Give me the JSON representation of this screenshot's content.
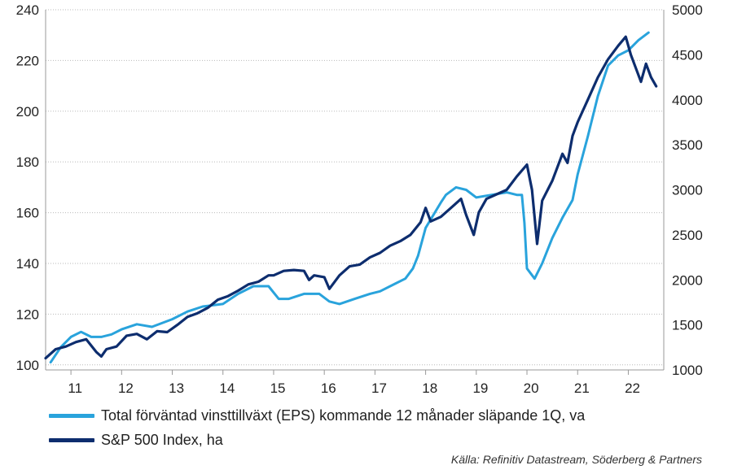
{
  "chart_data": {
    "type": "line",
    "title": "",
    "xlabel": "",
    "ylabel_left": "",
    "ylabel_right": "",
    "x_tick_labels": [
      "11",
      "12",
      "13",
      "14",
      "15",
      "16",
      "17",
      "18",
      "19",
      "20",
      "21",
      "22"
    ],
    "xlim": [
      2010.5,
      2022.7
    ],
    "y_left": {
      "lim": [
        98,
        240
      ],
      "ticks": [
        100,
        120,
        140,
        160,
        180,
        200,
        220,
        240
      ]
    },
    "y_right": {
      "lim": [
        1000,
        5000
      ],
      "ticks": [
        1000,
        1500,
        2000,
        2500,
        3000,
        3500,
        4000,
        4500,
        5000
      ]
    },
    "grid": "horizontal dotted",
    "series": [
      {
        "name": "Total förväntad vinsttillväxt (EPS) kommande 12 månader släpande 1Q, va",
        "axis": "left",
        "color": "#29a3dc",
        "x": [
          2010.6,
          2010.8,
          2011.0,
          2011.2,
          2011.4,
          2011.6,
          2011.8,
          2012.0,
          2012.3,
          2012.6,
          2013.0,
          2013.3,
          2013.6,
          2014.0,
          2014.3,
          2014.6,
          2014.9,
          2015.1,
          2015.3,
          2015.6,
          2015.9,
          2016.1,
          2016.3,
          2016.6,
          2016.9,
          2017.1,
          2017.4,
          2017.6,
          2017.75,
          2017.85,
          2018.0,
          2018.3,
          2018.4,
          2018.6,
          2018.8,
          2019.0,
          2019.3,
          2019.6,
          2019.8,
          2019.9,
          2019.95,
          2020.0,
          2020.15,
          2020.3,
          2020.5,
          2020.7,
          2020.9,
          2021.0,
          2021.2,
          2021.4,
          2021.6,
          2021.8,
          2022.0,
          2022.2,
          2022.4
        ],
        "y": [
          101,
          107,
          111,
          113,
          111,
          111,
          112,
          114,
          116,
          115,
          118,
          121,
          123,
          124,
          128,
          131,
          131,
          126,
          126,
          128,
          128,
          125,
          124,
          126,
          128,
          129,
          132,
          134,
          138,
          143,
          154,
          164,
          167,
          170,
          169,
          166,
          167,
          168,
          167,
          167,
          156,
          138,
          134,
          140,
          150,
          158,
          165,
          175,
          190,
          206,
          218,
          222,
          224,
          228,
          231
        ]
      },
      {
        "name": "S&P 500 Index, ha",
        "axis": "right",
        "color": "#0d2d6e",
        "x": [
          2010.5,
          2010.7,
          2010.9,
          2011.1,
          2011.3,
          2011.5,
          2011.6,
          2011.7,
          2011.9,
          2012.1,
          2012.3,
          2012.5,
          2012.7,
          2012.9,
          2013.1,
          2013.3,
          2013.5,
          2013.7,
          2013.9,
          2014.1,
          2014.3,
          2014.5,
          2014.7,
          2014.9,
          2015.0,
          2015.2,
          2015.4,
          2015.6,
          2015.7,
          2015.8,
          2016.0,
          2016.1,
          2016.3,
          2016.5,
          2016.7,
          2016.9,
          2017.1,
          2017.3,
          2017.5,
          2017.7,
          2017.9,
          2018.0,
          2018.1,
          2018.3,
          2018.5,
          2018.7,
          2018.8,
          2018.95,
          2019.05,
          2019.2,
          2019.4,
          2019.6,
          2019.8,
          2020.0,
          2020.1,
          2020.2,
          2020.3,
          2020.5,
          2020.7,
          2020.8,
          2020.9,
          2021.0,
          2021.2,
          2021.4,
          2021.6,
          2021.8,
          2021.95,
          2022.05,
          2022.15,
          2022.25,
          2022.35,
          2022.45,
          2022.55
        ],
        "y": [
          1130,
          1230,
          1260,
          1310,
          1340,
          1200,
          1150,
          1230,
          1260,
          1380,
          1400,
          1340,
          1430,
          1420,
          1500,
          1590,
          1630,
          1690,
          1780,
          1820,
          1880,
          1950,
          1980,
          2050,
          2050,
          2100,
          2110,
          2100,
          2000,
          2050,
          2030,
          1900,
          2050,
          2150,
          2170,
          2250,
          2300,
          2380,
          2430,
          2500,
          2640,
          2800,
          2650,
          2700,
          2800,
          2900,
          2720,
          2500,
          2750,
          2900,
          2950,
          3000,
          3150,
          3280,
          3000,
          2400,
          2880,
          3100,
          3400,
          3300,
          3600,
          3750,
          4000,
          4250,
          4450,
          4600,
          4700,
          4500,
          4350,
          4200,
          4400,
          4250,
          4150
        ]
      }
    ],
    "source": "Källa: Refinitiv Datastream, Söderberg & Partners"
  },
  "legend": {
    "item1": "Total förväntad vinsttillväxt (EPS) kommande 12 månader släpande 1Q, va",
    "item2": "S&P 500 Index, ha"
  }
}
